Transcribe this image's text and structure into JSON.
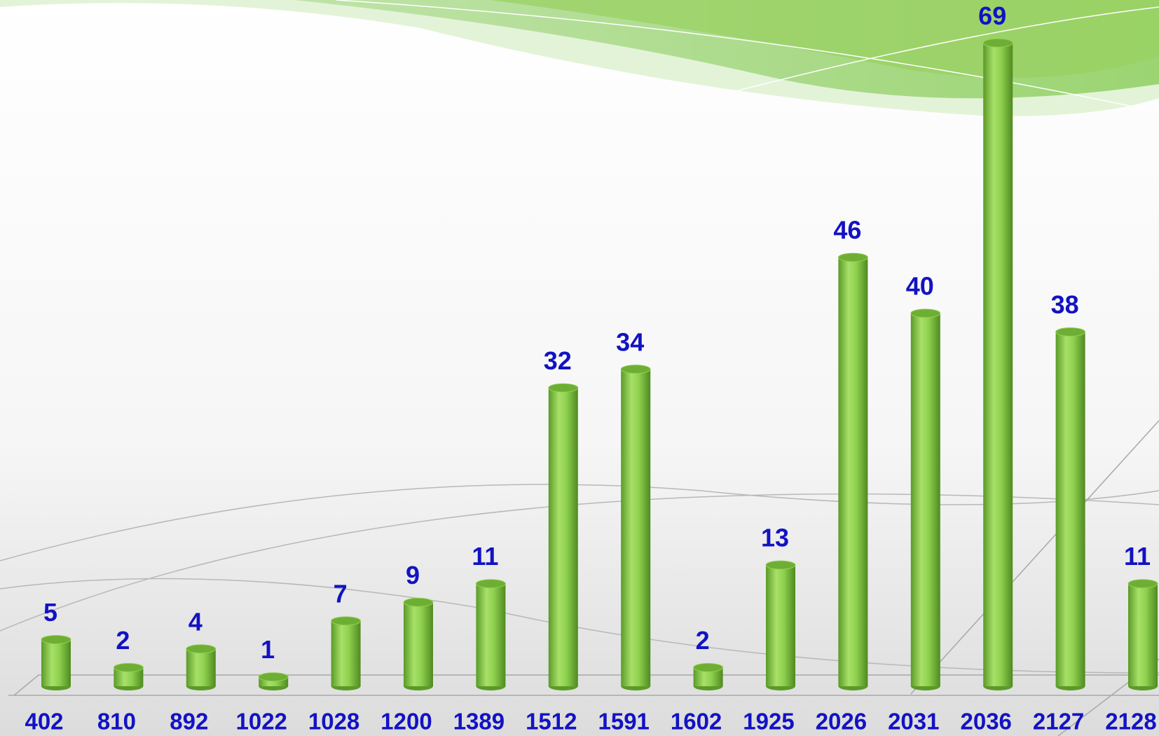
{
  "chart_data": {
    "type": "bar",
    "categories": [
      "402",
      "810",
      "892",
      "1022",
      "1028",
      "1200",
      "1389",
      "1512",
      "1591",
      "1602",
      "1925",
      "2026",
      "2031",
      "2036",
      "2127",
      "2128"
    ],
    "values": [
      5,
      2,
      4,
      1,
      7,
      9,
      11,
      32,
      34,
      2,
      13,
      46,
      40,
      69,
      38,
      11
    ],
    "color": "#8fd14f"
  }
}
